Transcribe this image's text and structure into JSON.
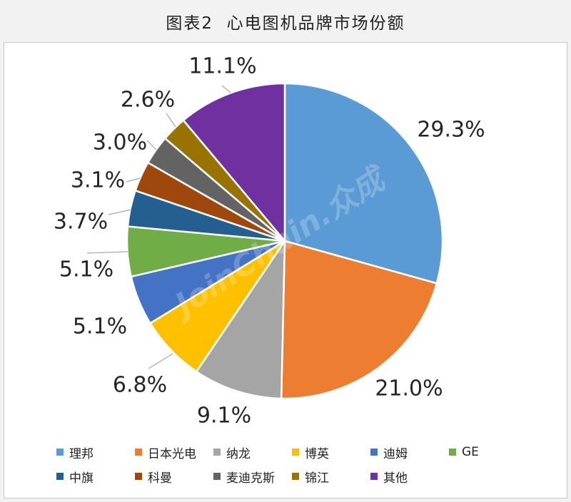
{
  "watermark": "JoinChain.众成",
  "chart_data": {
    "type": "pie",
    "title": "图表2  心电图机品牌市场份额",
    "categories": [
      "理邦",
      "日本光电",
      "纳龙",
      "博英",
      "迪姆",
      "GE",
      "中旗",
      "科曼",
      "麦迪克斯",
      "锦江",
      "其他"
    ],
    "values": [
      29.3,
      21.0,
      9.1,
      6.8,
      5.1,
      5.1,
      3.7,
      3.1,
      3.0,
      2.6,
      11.1
    ],
    "data_labels": [
      "29.3%",
      "21.0%",
      "9.1%",
      "6.8%",
      "5.1%",
      "5.1%",
      "3.7%",
      "3.1%",
      "3.0%",
      "2.6%",
      "11.1%"
    ],
    "colors": [
      "#5B9BD5",
      "#ED7D31",
      "#A5A5A5",
      "#FFC000",
      "#4472C4",
      "#70AD47",
      "#255E91",
      "#9E480E",
      "#636363",
      "#997300",
      "#7030A0"
    ],
    "legend_position": "bottom"
  }
}
